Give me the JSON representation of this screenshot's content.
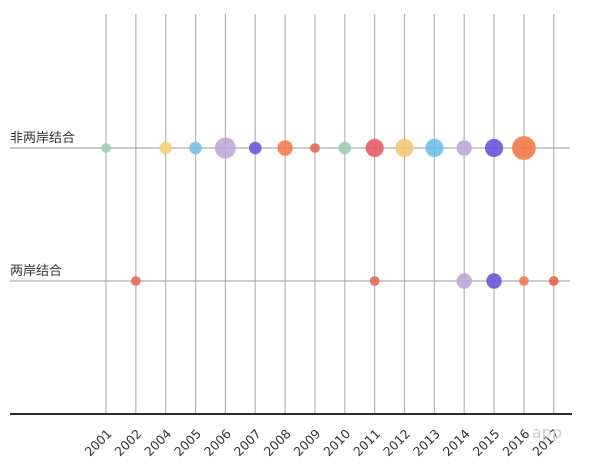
{
  "chart_data": {
    "type": "scatter",
    "title": "",
    "xlabel": "",
    "ylabel": "",
    "categories": [
      "2001",
      "2002",
      "2004",
      "2005",
      "2006",
      "2007",
      "2008",
      "2009",
      "2010",
      "2011",
      "2012",
      "2013",
      "2014",
      "2015",
      "2016",
      "2017"
    ],
    "rows": [
      "非两岸结合",
      "两岸结合"
    ],
    "grid": true,
    "points": [
      {
        "row": "非两岸结合",
        "x": "2001",
        "size": 1,
        "color": "#9fcfb0"
      },
      {
        "row": "非两岸结合",
        "x": "2004",
        "size": 2,
        "color": "#f3cf7c"
      },
      {
        "row": "非两岸结合",
        "x": "2005",
        "size": 2,
        "color": "#7bbfe8"
      },
      {
        "row": "非两岸结合",
        "x": "2006",
        "size": 5,
        "color": "#c2a7d9"
      },
      {
        "row": "非两岸结合",
        "x": "2007",
        "size": 2,
        "color": "#6a5ad8"
      },
      {
        "row": "非两岸结合",
        "x": "2008",
        "size": 3,
        "color": "#f37e4f"
      },
      {
        "row": "非两岸结合",
        "x": "2009",
        "size": 1,
        "color": "#e06b55"
      },
      {
        "row": "非两岸结合",
        "x": "2010",
        "size": 2,
        "color": "#9fcfb0"
      },
      {
        "row": "非两岸结合",
        "x": "2011",
        "size": 4,
        "color": "#e35e68"
      },
      {
        "row": "非两岸结合",
        "x": "2012",
        "size": 4,
        "color": "#f3c777"
      },
      {
        "row": "非两岸结合",
        "x": "2013",
        "size": 4,
        "color": "#6fbce8"
      },
      {
        "row": "非两岸结合",
        "x": "2014",
        "size": 3,
        "color": "#c2a7d9"
      },
      {
        "row": "非两岸结合",
        "x": "2015",
        "size": 4,
        "color": "#6a55db"
      },
      {
        "row": "非两岸结合",
        "x": "2016",
        "size": 6,
        "color": "#f37a48"
      },
      {
        "row": "两岸结合",
        "x": "2002",
        "size": 1,
        "color": "#e06b5b"
      },
      {
        "row": "两岸结合",
        "x": "2011",
        "size": 1,
        "color": "#e06b5b"
      },
      {
        "row": "两岸结合",
        "x": "2014",
        "size": 3,
        "color": "#c2a7d9"
      },
      {
        "row": "两岸结合",
        "x": "2015",
        "size": 3,
        "color": "#6a55db"
      },
      {
        "row": "两岸结合",
        "x": "2016",
        "size": 1,
        "color": "#f37e4f"
      },
      {
        "row": "两岸结合",
        "x": "2017",
        "size": 1,
        "color": "#e0684d"
      }
    ]
  },
  "watermark": "app"
}
